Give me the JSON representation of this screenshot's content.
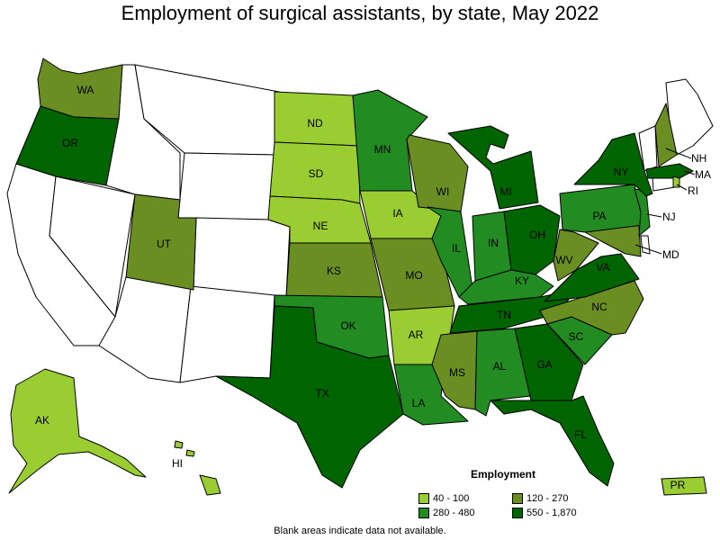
{
  "title": "Employment of surgical assistants, by state, May 2022",
  "footnote": "Blank areas indicate data not available.",
  "colors": {
    "none": "#ffffff",
    "c1": "#9acd32",
    "c2": "#6b8e23",
    "c3": "#228b22",
    "c4": "#006400"
  },
  "legend": {
    "title": "Employment",
    "items": [
      {
        "label": "40 - 100",
        "color": "#9acd32"
      },
      {
        "label": "120 - 270",
        "color": "#6b8e23"
      },
      {
        "label": "280 - 480",
        "color": "#228b22"
      },
      {
        "label": "550 - 1,870",
        "color": "#006400"
      }
    ]
  },
  "chart_data": {
    "type": "choropleth",
    "title": "Employment of surgical assistants, by state, May 2022",
    "legend_title": "Employment",
    "bins": [
      "40 - 100",
      "120 - 270",
      "280 - 480",
      "550 - 1,870"
    ],
    "states": [
      {
        "abbr": "WA",
        "bin": "120 - 270"
      },
      {
        "abbr": "OR",
        "bin": "550 - 1,870"
      },
      {
        "abbr": "ND",
        "bin": "40 - 100"
      },
      {
        "abbr": "SD",
        "bin": "40 - 100"
      },
      {
        "abbr": "NE",
        "bin": "40 - 100"
      },
      {
        "abbr": "KS",
        "bin": "120 - 270"
      },
      {
        "abbr": "OK",
        "bin": "280 - 480"
      },
      {
        "abbr": "TX",
        "bin": "550 - 1,870"
      },
      {
        "abbr": "MN",
        "bin": "280 - 480"
      },
      {
        "abbr": "IA",
        "bin": "40 - 100"
      },
      {
        "abbr": "MO",
        "bin": "120 - 270"
      },
      {
        "abbr": "AR",
        "bin": "40 - 100"
      },
      {
        "abbr": "LA",
        "bin": "280 - 480"
      },
      {
        "abbr": "WI",
        "bin": "120 - 270"
      },
      {
        "abbr": "IL",
        "bin": "280 - 480"
      },
      {
        "abbr": "MI",
        "bin": "550 - 1,870"
      },
      {
        "abbr": "IN",
        "bin": "280 - 480"
      },
      {
        "abbr": "OH",
        "bin": "550 - 1,870"
      },
      {
        "abbr": "KY",
        "bin": "280 - 480"
      },
      {
        "abbr": "TN",
        "bin": "550 - 1,870"
      },
      {
        "abbr": "MS",
        "bin": "120 - 270"
      },
      {
        "abbr": "AL",
        "bin": "280 - 480"
      },
      {
        "abbr": "GA",
        "bin": "550 - 1,870"
      },
      {
        "abbr": "FL",
        "bin": "550 - 1,870"
      },
      {
        "abbr": "SC",
        "bin": "280 - 480"
      },
      {
        "abbr": "NC",
        "bin": "120 - 270"
      },
      {
        "abbr": "VA",
        "bin": "550 - 1,870"
      },
      {
        "abbr": "WV",
        "bin": "120 - 270"
      },
      {
        "abbr": "MD",
        "bin": "120 - 270"
      },
      {
        "abbr": "PA",
        "bin": "280 - 480"
      },
      {
        "abbr": "NY",
        "bin": "550 - 1,870"
      },
      {
        "abbr": "NJ",
        "bin": "280 - 480"
      },
      {
        "abbr": "NH",
        "bin": "120 - 270"
      },
      {
        "abbr": "MA",
        "bin": "550 - 1,870"
      },
      {
        "abbr": "RI",
        "bin": "40 - 100"
      },
      {
        "abbr": "UT",
        "bin": "120 - 270"
      },
      {
        "abbr": "AK",
        "bin": "40 - 100"
      },
      {
        "abbr": "HI",
        "bin": "40 - 100"
      },
      {
        "abbr": "PR",
        "bin": "40 - 100"
      }
    ]
  }
}
